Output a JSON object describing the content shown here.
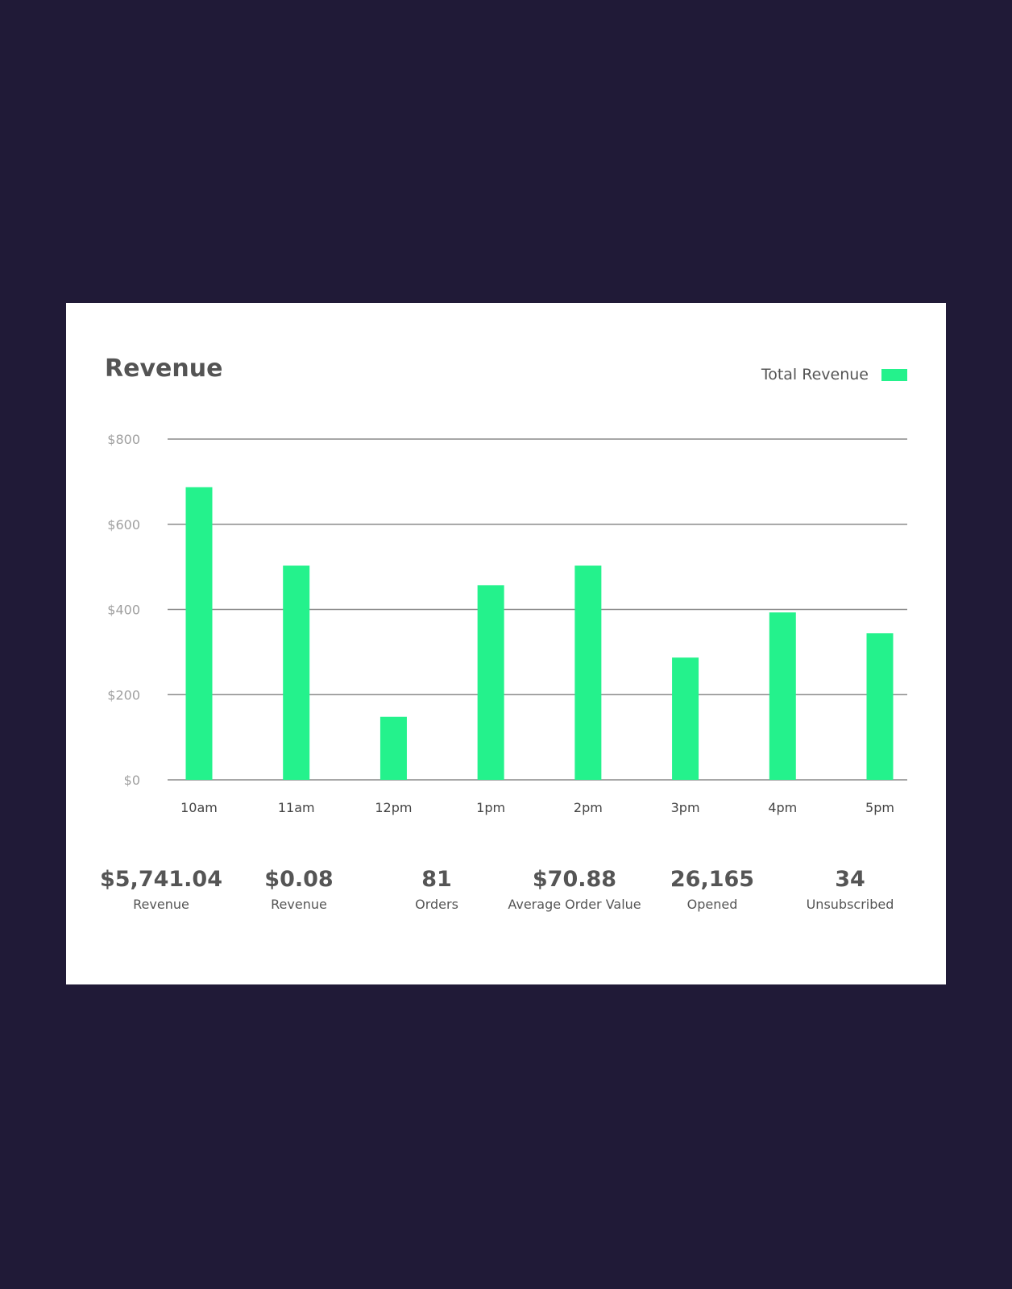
{
  "colors": {
    "background": "#201a37",
    "card": "#ffffff",
    "bar": "#24f28c",
    "grid": "#8a8a8a",
    "text": "#555555"
  },
  "chart_data": {
    "type": "bar",
    "title": "Revenue",
    "categories": [
      "10am",
      "11am",
      "12pm",
      "1pm",
      "2pm",
      "3pm",
      "4pm",
      "5pm"
    ],
    "series": [
      {
        "name": "Total Revenue",
        "values": [
          687,
          503,
          148,
          457,
          503,
          287,
          393,
          344
        ]
      }
    ],
    "ylim": [
      0,
      800
    ],
    "yticks": [
      0,
      200,
      400,
      600,
      800
    ],
    "ytick_labels": [
      "$0",
      "$200",
      "$400",
      "$600",
      "$800"
    ],
    "grid": true,
    "legend_position": "top-right"
  },
  "stats": [
    {
      "value": "$5,741.04",
      "label": "Revenue"
    },
    {
      "value": "$0.08",
      "label": "Revenue"
    },
    {
      "value": "81",
      "label": "Orders"
    },
    {
      "value": "$70.88",
      "label": "Average Order Value"
    },
    {
      "value": "26,165",
      "label": "Opened"
    },
    {
      "value": "34",
      "label": "Unsubscribed"
    }
  ]
}
